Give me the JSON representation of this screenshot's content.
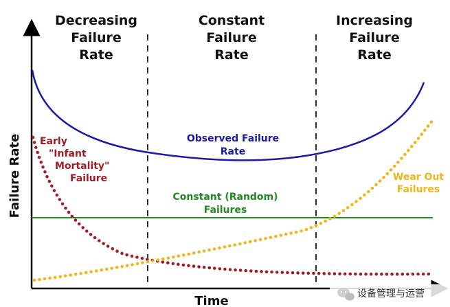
{
  "regions": [
    {
      "title_lines": [
        "Decreasing",
        "Failure",
        "Rate"
      ]
    },
    {
      "title_lines": [
        "Constant",
        "Failure",
        "Rate"
      ]
    },
    {
      "title_lines": [
        "Increasing",
        "Failure",
        "Rate"
      ]
    }
  ],
  "axes": {
    "x_label": "Time",
    "y_label": "Failure Rate"
  },
  "curves": {
    "observed": {
      "label_lines": [
        "Observed Failure",
        "Rate"
      ],
      "color": "#1a1aa6"
    },
    "infant": {
      "label_lines": [
        "Early",
        "\"Infant",
        "Mortality\"",
        "Failure"
      ],
      "color": "#a01c24"
    },
    "random": {
      "label_lines": [
        "Constant (Random)",
        "Failures"
      ],
      "color": "#1f8a1f"
    },
    "wearout": {
      "label_lines": [
        "Wear Out",
        "Failures"
      ],
      "color": "#f2b41c"
    }
  },
  "watermark": {
    "text": "设备管理与运营",
    "icon": "wechat-icon"
  }
}
